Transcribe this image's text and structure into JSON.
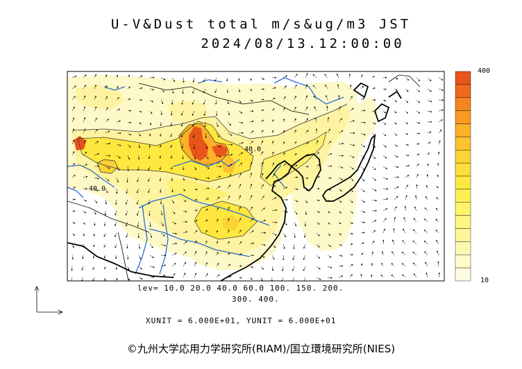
{
  "header": {
    "title": "U-V&Dust total m/s&ug/m3 JST",
    "timestamp": "2024/08/13.12:00:00"
  },
  "colorbar": {
    "max_label": "400",
    "min_label": "10",
    "colors": [
      "#e8541a",
      "#ef6a1c",
      "#f5841f",
      "#f99a22",
      "#fbb128",
      "#fcc32f",
      "#fdd335",
      "#fee03b",
      "#fee942",
      "#fef052",
      "#fef36a",
      "#fef581",
      "#fef79a",
      "#fef9b2",
      "#fefbca",
      "#fefce0"
    ]
  },
  "contour_labels": [
    "40.0",
    "40.0"
  ],
  "footer": {
    "levels_line1": "lev= 10.0 20.0 40.0 60.0 100. 150. 200.",
    "levels_line2": "300. 400.",
    "units": "XUNIT = 6.000E+01, YUNIT = 6.000E+01",
    "copyright": "©九州大学応用力学研究所(RIAM)/国立環境研究所(NIES)"
  },
  "legend": {
    "arrow_icon": "reference-vector-arrow-icon"
  },
  "colors": {
    "high": "#e8541a",
    "medium": "#fcc32f",
    "low": "#fef9b2",
    "rivers": "#2a6fd6",
    "coast": "#000000"
  }
}
